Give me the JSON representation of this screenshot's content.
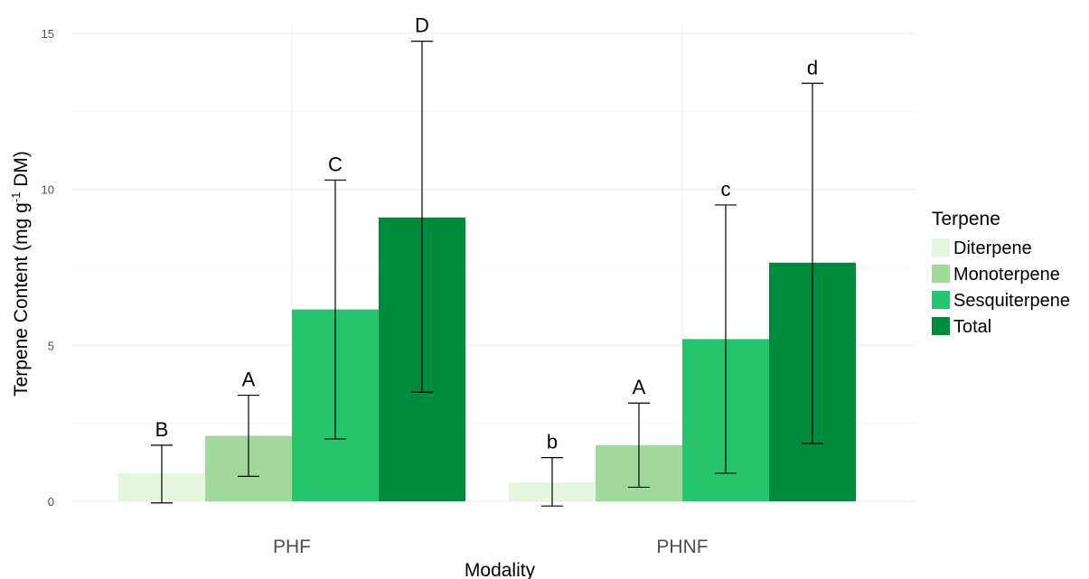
{
  "chart_data": {
    "type": "bar",
    "categories": [
      "PHF",
      "PHNF"
    ],
    "xlabel": "Modality",
    "ylabel_main": "Terpene Content (mg g",
    "ylabel_sup": "-1",
    "ylabel_end": " DM)",
    "ylim": [
      0,
      15
    ],
    "yticks": [
      "0",
      "5",
      "10",
      "15"
    ],
    "grid": true,
    "legend": {
      "title": "Terpene",
      "position": "right",
      "entries": [
        "Diterpene",
        "Monoterpene",
        "Sesquiterpene",
        "Total"
      ]
    },
    "series": [
      {
        "name": "Diterpene",
        "color": "#e5f5e0",
        "values": [
          0.9,
          0.6
        ],
        "err_low": [
          -0.05,
          -0.15
        ],
        "err_high": [
          1.8,
          1.4
        ],
        "labels": [
          "B",
          "b"
        ]
      },
      {
        "name": "Monoterpene",
        "color": "#a1d99b",
        "values": [
          2.1,
          1.8
        ],
        "err_low": [
          0.8,
          0.45
        ],
        "err_high": [
          3.4,
          3.15
        ],
        "labels": [
          "A",
          "A"
        ]
      },
      {
        "name": "Sesquiterpene",
        "color": "#27c46e",
        "values": [
          6.15,
          5.2
        ],
        "err_low": [
          2.0,
          0.9
        ],
        "err_high": [
          10.3,
          9.5
        ],
        "labels": [
          "C",
          "c"
        ]
      },
      {
        "name": "Total",
        "color": "#008a3e",
        "values": [
          9.1,
          7.65
        ],
        "err_low": [
          3.5,
          1.85
        ],
        "err_high": [
          14.75,
          13.4
        ],
        "labels": [
          "D",
          "d"
        ]
      }
    ]
  }
}
